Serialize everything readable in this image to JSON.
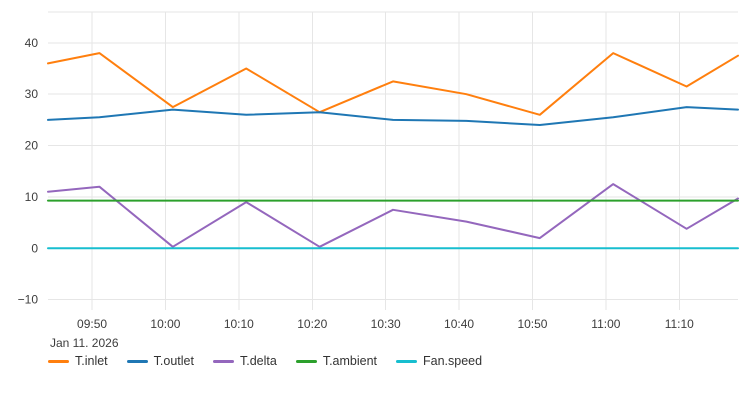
{
  "chart_data": {
    "type": "line",
    "title": "",
    "xlabel": "",
    "ylabel": "",
    "date_label": "Jan 11. 2026",
    "grid": true,
    "legend_position": "bottom",
    "xlim": [
      584,
      678
    ],
    "ylim": [
      -12,
      46
    ],
    "y_ticks": [
      -10,
      0,
      10,
      20,
      30,
      40
    ],
    "x_ticks": [
      {
        "m": 590,
        "label": "09:50"
      },
      {
        "m": 600,
        "label": "10:00"
      },
      {
        "m": 610,
        "label": "10:10"
      },
      {
        "m": 620,
        "label": "10:20"
      },
      {
        "m": 630,
        "label": "10:30"
      },
      {
        "m": 640,
        "label": "10:40"
      },
      {
        "m": 650,
        "label": "10:50"
      },
      {
        "m": 660,
        "label": "11:00"
      },
      {
        "m": 670,
        "label": "11:10"
      }
    ],
    "x_minutes": [
      584,
      591,
      601,
      611,
      621,
      631,
      641,
      651,
      661,
      671,
      678
    ],
    "series": [
      {
        "name": "T.inlet",
        "color": "#ff7f0e",
        "values": [
          36,
          38,
          27.5,
          35,
          26.5,
          32.5,
          30,
          26,
          38,
          31.5,
          37.5
        ]
      },
      {
        "name": "T.outlet",
        "color": "#1f77b4",
        "values": [
          25,
          25.5,
          27,
          26,
          26.5,
          25,
          24.8,
          24,
          25.5,
          27.5,
          27
        ]
      },
      {
        "name": "T.delta",
        "color": "#9467bd",
        "values": [
          11,
          12,
          0.3,
          9,
          0.3,
          7.5,
          5.2,
          2,
          12.5,
          3.8,
          9.7
        ]
      },
      {
        "name": "T.ambient",
        "color": "#2ca02c",
        "values": [
          9.3,
          9.3,
          9.3,
          9.3,
          9.3,
          9.3,
          9.3,
          9.3,
          9.3,
          9.3,
          9.3
        ]
      },
      {
        "name": "Fan.speed",
        "color": "#17becf",
        "values": [
          0,
          0,
          0,
          0,
          0,
          0,
          0,
          0,
          0,
          0,
          0
        ]
      }
    ]
  }
}
